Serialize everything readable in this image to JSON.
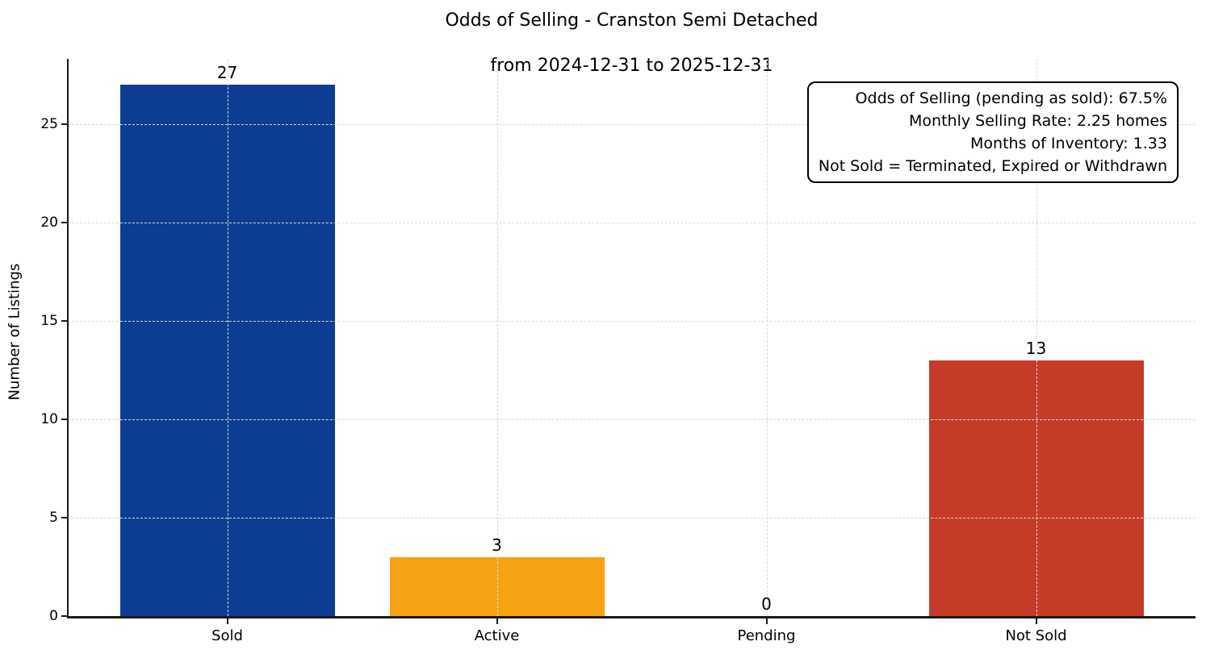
{
  "chart_data": {
    "type": "bar",
    "title_lines": [
      "Odds of Selling - Cranston Semi Detached",
      "from 2024-12-31 to 2025-12-31"
    ],
    "categories": [
      "Sold",
      "Active",
      "Pending",
      "Not Sold"
    ],
    "values": [
      27,
      3,
      0,
      13
    ],
    "bar_colors": [
      "#0d3d92",
      "#f5a314",
      null,
      "#c53b28"
    ],
    "xlabel": "",
    "ylabel": "Number of Listings",
    "yticks": [
      0,
      5,
      10,
      15,
      20,
      25
    ],
    "ylim": [
      0,
      28.3
    ],
    "grid": true,
    "grid_style": "dashed",
    "legend_position": "none",
    "annotation_box": {
      "position": "top-right",
      "lines": [
        "Odds of Selling (pending as sold): 67.5%",
        "Monthly Selling Rate: 2.25 homes",
        "Months of Inventory: 1.33",
        "Not Sold = Terminated, Expired or Withdrawn"
      ]
    }
  }
}
